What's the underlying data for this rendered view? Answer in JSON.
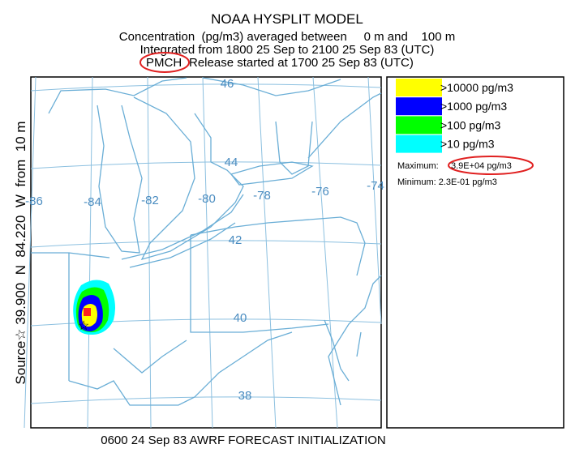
{
  "header": {
    "title": "NOAA HYSPLIT MODEL",
    "lines": [
      "Concentration  (pg/m3) averaged between     0 m and    100 m",
      "Integrated from 1800 25 Sep to 2100 25 Sep 83 (UTC)"
    ],
    "species": "PMCH",
    "release": "Release started at 1700 25 Sep 83 (UTC)"
  },
  "map": {
    "source_label": "Source☆ 39.900  N  84.220  W  from  10 m",
    "latitude_labels": [
      46,
      44,
      42,
      40,
      38
    ],
    "longitude_labels": [
      -86,
      -84,
      -82,
      -80,
      -78,
      -76,
      -74
    ]
  },
  "legend": {
    "items": [
      {
        "label": ">10000 pg/m3",
        "color": "#ffff00"
      },
      {
        "label": ">1000 pg/m3",
        "color": "#0000ff"
      },
      {
        "label": ">100 pg/m3",
        "color": "#00ff00"
      },
      {
        "label": ">10 pg/m3",
        "color": "#00ffff"
      }
    ],
    "maximum": {
      "label": "Maximum:",
      "value": "3.9E+04 pg/m3"
    },
    "minimum": "Minimum: 2.3E-01 pg/m3"
  },
  "footer": "0600 24 Sep 83 AWRF FORECAST INITIALIZATION"
}
